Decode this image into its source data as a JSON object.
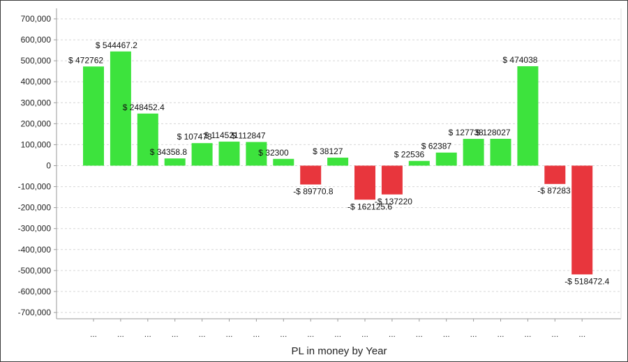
{
  "chart_data": {
    "type": "bar",
    "xlabel": "PL in money by Year",
    "ylabel": "",
    "ylim": [
      -700000,
      700000
    ],
    "grid": true,
    "yticks": [
      700000,
      600000,
      500000,
      400000,
      300000,
      200000,
      100000,
      0,
      -100000,
      -200000,
      -300000,
      -400000,
      -500000,
      -600000,
      -700000
    ],
    "ytick_labels": [
      "700,000",
      "600,000",
      "500,000",
      "400,000",
      "300,000",
      "200,000",
      "100,000",
      "0",
      "-100,000",
      "-200,000",
      "-300,000",
      "-400,000",
      "-500,000",
      "-600,000",
      "-700,000"
    ],
    "categories": [
      "...",
      "...",
      "...",
      "...",
      "...",
      "...",
      "...",
      "...",
      "...",
      "...",
      "...",
      "...",
      "...",
      "...",
      "...",
      "...",
      "...",
      "...",
      "..."
    ],
    "values": [
      472762,
      544467.2,
      248452.4,
      34358.8,
      107473,
      114521,
      112847,
      32300,
      -89770.8,
      38127,
      -162125.6,
      -137220,
      22536,
      62387,
      127738,
      128027,
      474038,
      -87283,
      -518472.4
    ],
    "data_labels": [
      "$ 472762",
      "$ 544467.2",
      "$ 248452.4",
      "$ 34358.8",
      "$ 107473",
      "$ 114521",
      "$ 112847",
      "$ 32300",
      "-$ 89770.8",
      "$ 38127",
      "-$ 162125.6",
      "-$ 137220",
      "$ 22536",
      "$ 62387",
      "$ 127738",
      "$ 128027",
      "$ 474038",
      "-$ 87283",
      "-$ 518472.4"
    ],
    "colors": {
      "positive": "#3de33d",
      "negative": "#e8363d",
      "grid": "#d6d6d6",
      "axis": "#9a9a9a"
    }
  }
}
